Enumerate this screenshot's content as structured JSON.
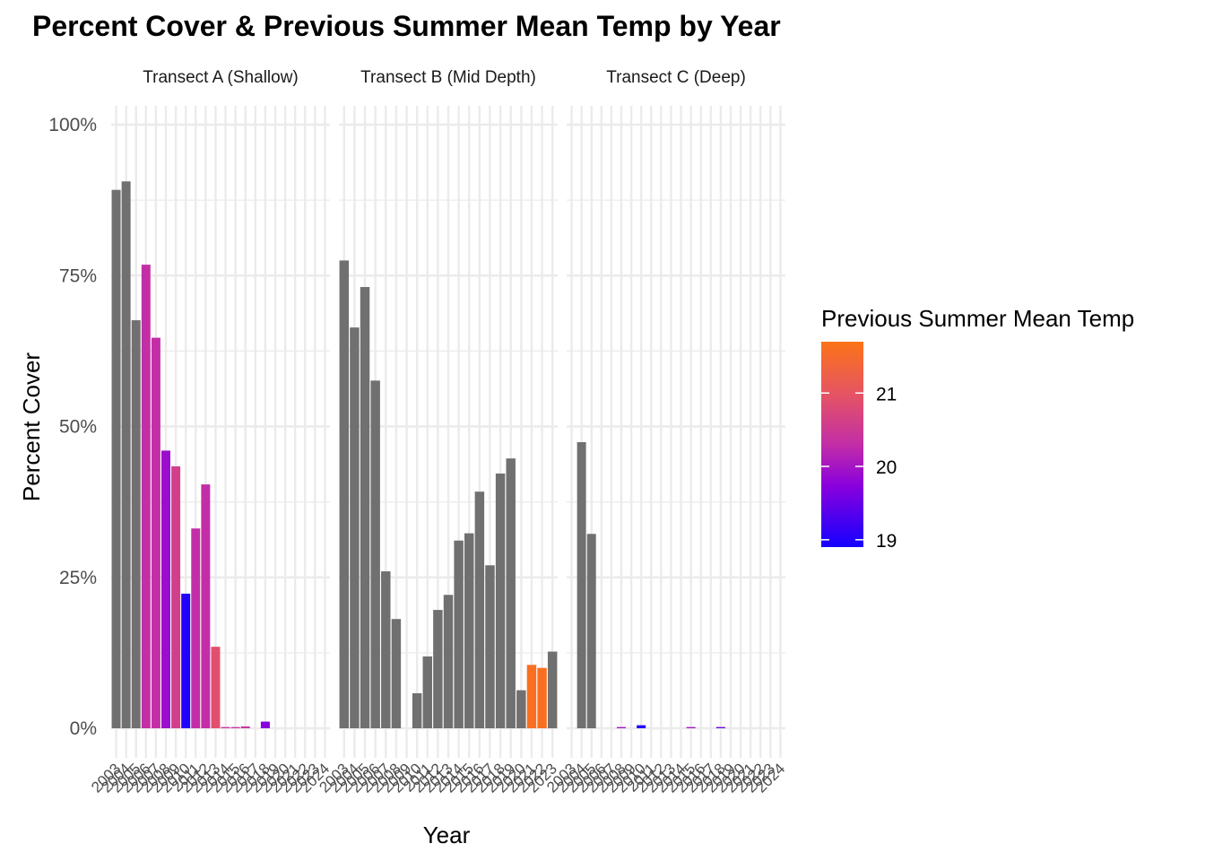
{
  "chart_data": {
    "type": "bar",
    "title": "Percent Cover & Previous Summer Mean Temp by Year",
    "xlabel": "Year",
    "ylabel": "Percent Cover",
    "ylim": [
      0,
      1
    ],
    "yticks": [
      0,
      0.25,
      0.5,
      0.75,
      1.0
    ],
    "ytick_labels": [
      "0%",
      "25%",
      "50%",
      "75%",
      "100%"
    ],
    "x": [
      "2003",
      "2004",
      "2005",
      "2006",
      "2007",
      "2008",
      "2009",
      "2010",
      "2011",
      "2012",
      "2013",
      "2014",
      "2015",
      "2016",
      "2017",
      "2018",
      "2019",
      "2020",
      "2021",
      "2022",
      "2023",
      "2024"
    ],
    "x_tick_labels": [
      "2003",
      "2004",
      "2005",
      "2006",
      "2007",
      "2008",
      "2009",
      "2010",
      "2011",
      "2012",
      "2013",
      "2014",
      "2015",
      "2016",
      "2017",
      "2018",
      "2019",
      "2020",
      "2021",
      "2022",
      "2023",
      "2024"
    ],
    "panels": [
      {
        "label": "Transect A (Shallow)",
        "values": [
          0.892,
          0.906,
          0.676,
          0.768,
          0.647,
          0.46,
          0.434,
          0.223,
          0.331,
          0.404,
          0.135,
          0.002,
          0.002,
          0.003,
          0,
          0.011,
          0,
          0,
          0,
          0,
          0,
          0
        ],
        "temps": [
          null,
          null,
          null,
          20.3,
          20.3,
          19.9,
          20.6,
          19.0,
          20.3,
          20.3,
          20.9,
          20.4,
          20.4,
          20.4,
          null,
          19.7,
          null,
          null,
          null,
          null,
          null,
          null
        ]
      },
      {
        "label": "Transect B (Mid Depth)",
        "values": [
          0.775,
          0.664,
          0.731,
          0.576,
          0.26,
          0.181,
          0,
          0.058,
          0.119,
          0.196,
          0.221,
          0.311,
          0.323,
          0.392,
          0.27,
          0.422,
          0.447,
          0.063,
          0.105,
          0.1,
          0.127
        ],
        "temps": [
          null,
          null,
          null,
          null,
          null,
          null,
          null,
          null,
          null,
          null,
          null,
          null,
          null,
          null,
          null,
          null,
          null,
          null,
          21.6,
          21.6,
          null
        ],
        "x": [
          "2003",
          "2004",
          "2005",
          "2006",
          "2007",
          "2008",
          "2009",
          "2010",
          "2011",
          "2012",
          "2013",
          "2014",
          "2015",
          "2016",
          "2017",
          "2018",
          "2019",
          "2020",
          "2021",
          "2022",
          "2023"
        ]
      },
      {
        "label": "Transect C (Deep)",
        "values": [
          0,
          0.474,
          0.322,
          0,
          0,
          0.002,
          0,
          0.005,
          0,
          0,
          0,
          0,
          0.002,
          0,
          0,
          0.002,
          0,
          0,
          0,
          0,
          0,
          0
        ],
        "temps": [
          null,
          null,
          null,
          null,
          null,
          20.0,
          null,
          19.0,
          null,
          null,
          null,
          null,
          20.0,
          null,
          null,
          19.5,
          null,
          null,
          null,
          null,
          null,
          null
        ]
      }
    ],
    "na_color": "#707070",
    "legend": {
      "title": "Previous Summer Mean Temp",
      "placement": "right",
      "range": [
        18.9,
        21.7
      ],
      "ticks": [
        19,
        20,
        21
      ],
      "tick_labels": [
        "19",
        "20",
        "21"
      ],
      "colors": [
        "#1400ff",
        "#8a00dc",
        "#c32ea6",
        "#e65562",
        "#fc7317"
      ]
    },
    "grid": true
  }
}
